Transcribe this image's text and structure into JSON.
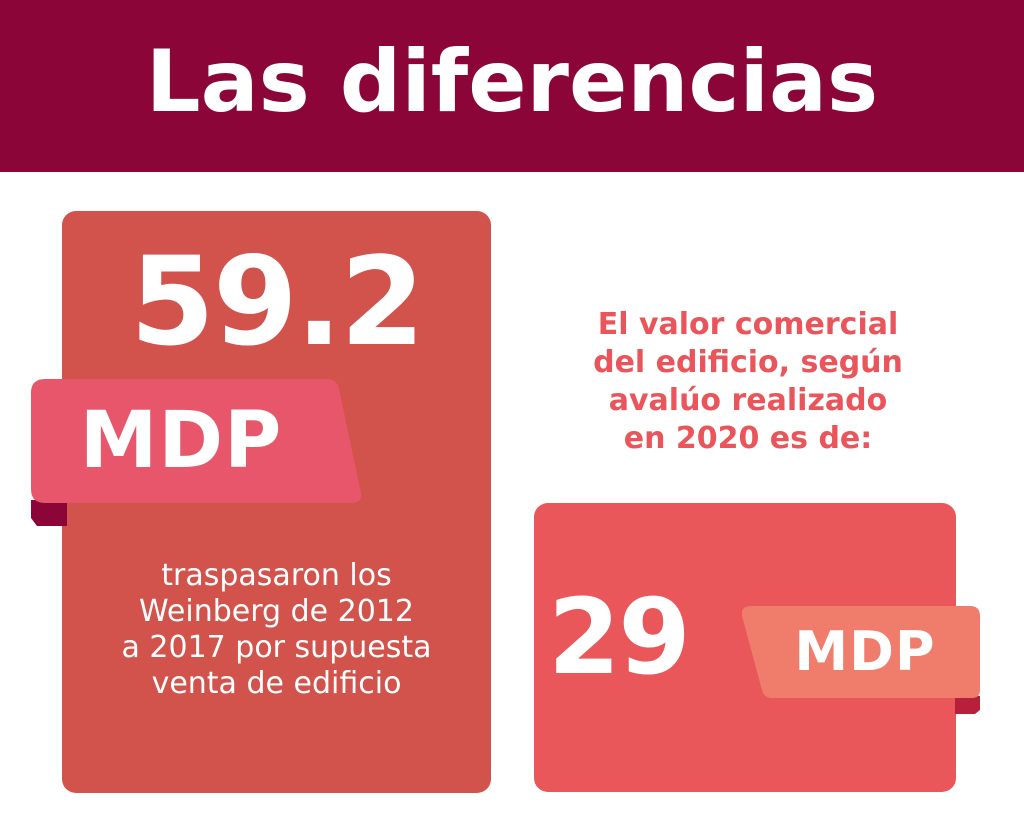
{
  "header": {
    "title": "Las diferencias"
  },
  "left_card": {
    "amount": "59.2",
    "unit": "MDP",
    "description_lines": [
      "traspasaron los",
      "Weinberg de 2012",
      "a 2017 por supuesta",
      "venta de edificio"
    ]
  },
  "right_section": {
    "intro_lines": [
      "El valor comercial",
      "del edificio, según",
      "avalúo realizado",
      "en 2020 es de:"
    ],
    "amount": "29",
    "unit": "MDP"
  },
  "colors": {
    "header_bg": "#8b0538",
    "left_card_bg": "#d2524c",
    "left_ribbon": "#e8566c",
    "left_ribbon_fold": "#8b0538",
    "right_text": "#e9555a",
    "right_card_bg": "#e9575a",
    "right_ribbon": "#f07c6c",
    "right_ribbon_fold": "#b81f3a"
  }
}
